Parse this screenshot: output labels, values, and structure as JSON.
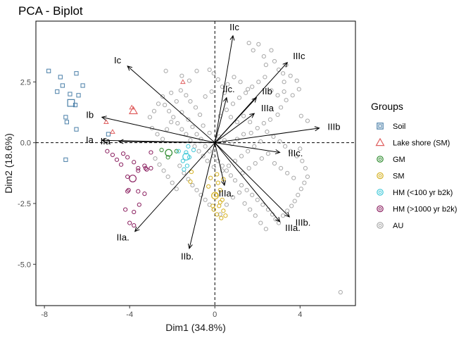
{
  "chart_data": {
    "type": "scatter",
    "title": "PCA - Biplot",
    "xlabel": "Dim1 (34.8%)",
    "ylabel": "Dim2 (18.6%)",
    "xlim": [
      -8.4,
      6.6
    ],
    "ylim": [
      -6.7,
      5.0
    ],
    "xticks": [
      -8,
      -4,
      0,
      4
    ],
    "yticks": [
      -5.0,
      -2.5,
      0.0,
      2.5
    ],
    "ytick_labels": [
      "-5.0",
      "-2.5",
      "0.0",
      "2.5"
    ],
    "grid": false,
    "reference_lines": [
      {
        "axis": "x",
        "value": 0,
        "style": "dashed"
      },
      {
        "axis": "y",
        "value": 0,
        "style": "dashed"
      }
    ],
    "legend": {
      "title": "Groups",
      "placement": "right",
      "entries": [
        {
          "label": "Soil",
          "shape": "square",
          "color": "#4a7fa8"
        },
        {
          "label": "Lake shore (SM)",
          "shape": "triangle",
          "color": "#e06060"
        },
        {
          "label": "GM",
          "shape": "circle",
          "color": "#2e8b2e"
        },
        {
          "label": "SM",
          "shape": "circle",
          "color": "#d4b020"
        },
        {
          "label": "HM (<100 yr b2k)",
          "shape": "circle",
          "color": "#40c8d8"
        },
        {
          "label": "HM (>1000 yr b2k)",
          "shape": "circle",
          "color": "#8b2060"
        },
        {
          "label": "AU",
          "shape": "circle",
          "color": "#a8a8a8"
        }
      ]
    },
    "variables": [
      {
        "name": "Ic",
        "x": -4.1,
        "y": 3.15
      },
      {
        "name": "Ib",
        "x": -5.3,
        "y": 1.05
      },
      {
        "name": "Ia",
        "x": -5.3,
        "y": 0.1
      },
      {
        "name": "IIc",
        "x": 0.85,
        "y": 4.4
      },
      {
        "name": "IIc.",
        "x": 0.55,
        "y": 1.85
      },
      {
        "name": "IIb",
        "x": 1.95,
        "y": 1.85
      },
      {
        "name": "IIa",
        "x": -4.5,
        "y": 0.05
      },
      {
        "name": "IIIc",
        "x": 3.4,
        "y": 3.3
      },
      {
        "name": "IIIb",
        "x": 4.9,
        "y": 0.6
      },
      {
        "name": "IIIa",
        "x": 1.85,
        "y": 1.2
      },
      {
        "name": "IIIc.",
        "x": 3.05,
        "y": -0.4
      },
      {
        "name": "IIa.",
        "x": -3.75,
        "y": -3.65
      },
      {
        "name": "IIb.",
        "x": -1.2,
        "y": -4.35
      },
      {
        "name": "IIIa.",
        "x": 0.45,
        "y": -1.75
      },
      {
        "name": "IIIa..",
        "x": 3.05,
        "y": -3.25
      },
      {
        "name": "IIIb.",
        "x": 3.5,
        "y": -3.05
      }
    ],
    "variable_label_text": {
      "Ic": "Ic",
      "Ib": "Ib",
      "Ia": "Ia",
      "IIc": "IIc",
      "IIc.": "IIc.",
      "IIb": "IIb",
      "IIa": "IIa",
      "IIIc": "IIIc",
      "IIIb": "IIIb",
      "IIIa": "IIIa",
      "IIIc.": "IIIc.",
      "IIa.": "IIa.",
      "IIb.": "IIb.",
      "IIIa.": "IIIa.",
      "IIIa..": "IIIa.",
      "IIIb.": "IIIb."
    },
    "series": [
      {
        "group": "Soil",
        "points": [
          [
            -7.8,
            2.95
          ],
          [
            -7.25,
            2.7
          ],
          [
            -7.15,
            2.35
          ],
          [
            -6.5,
            2.85
          ],
          [
            -6.8,
            2.0
          ],
          [
            -6.4,
            1.95
          ],
          [
            -6.2,
            2.35
          ],
          [
            -7.4,
            2.1
          ],
          [
            -7.0,
            1.05
          ],
          [
            -6.95,
            0.85
          ],
          [
            -6.5,
            0.55
          ],
          [
            -6.55,
            1.55
          ],
          [
            -7.0,
            -0.7
          ],
          [
            -5.0,
            0.35
          ]
        ]
      },
      {
        "group": "Lake shore (SM)",
        "points": [
          [
            -1.5,
            2.5
          ],
          [
            -4.8,
            0.45
          ],
          [
            -5.1,
            0.85
          ],
          [
            -3.9,
            1.45
          ]
        ]
      },
      {
        "group": "GM",
        "points": [
          [
            -2.5,
            -0.3
          ],
          [
            -2.2,
            -0.6
          ],
          [
            -1.8,
            -0.35
          ]
        ]
      },
      {
        "group": "SM",
        "points": [
          [
            0.1,
            -1.3
          ],
          [
            0.15,
            -1.65
          ],
          [
            0.25,
            -1.95
          ],
          [
            0.05,
            -2.15
          ],
          [
            0.35,
            -2.35
          ],
          [
            0.2,
            -2.6
          ],
          [
            0.4,
            -2.8
          ],
          [
            0.1,
            -2.95
          ],
          [
            0.3,
            -3.1
          ],
          [
            0.5,
            -3.0
          ],
          [
            -0.1,
            -2.6
          ],
          [
            -0.3,
            -1.8
          ],
          [
            -0.2,
            -1.45
          ],
          [
            0.4,
            -1.5
          ],
          [
            -1.1,
            -1.2
          ],
          [
            -1.15,
            -1.6
          ],
          [
            -0.05,
            -2.75
          ],
          [
            0.25,
            -2.45
          ]
        ]
      },
      {
        "group": "HM (<100 yr b2k)",
        "points": [
          [
            -1.45,
            -1.1
          ],
          [
            -1.3,
            -0.95
          ],
          [
            -1.2,
            -0.6
          ],
          [
            -1.0,
            -0.3
          ],
          [
            -1.35,
            -0.4
          ],
          [
            -1.7,
            -0.35
          ],
          [
            -1.5,
            -0.75
          ],
          [
            -1.25,
            -0.15
          ]
        ]
      },
      {
        "group": "HM (>1000 yr b2k)",
        "points": [
          [
            -5.05,
            -0.35
          ],
          [
            -4.8,
            -0.5
          ],
          [
            -4.6,
            -0.7
          ],
          [
            -4.4,
            -0.9
          ],
          [
            -4.1,
            -0.6
          ],
          [
            -3.8,
            -0.8
          ],
          [
            -3.6,
            -1.05
          ],
          [
            -3.2,
            -1.1
          ],
          [
            -3.3,
            -0.95
          ],
          [
            -4.3,
            -0.45
          ],
          [
            -3.0,
            -0.4
          ],
          [
            -4.1,
            -1.4
          ],
          [
            -3.0,
            -1.05
          ],
          [
            -4.1,
            -2.0
          ],
          [
            -3.55,
            -2.55
          ],
          [
            -3.6,
            -2.0
          ],
          [
            -4.2,
            -2.75
          ],
          [
            -3.8,
            -2.85
          ],
          [
            -4.0,
            -3.3
          ],
          [
            -3.8,
            -3.4
          ],
          [
            -4.05,
            -1.95
          ],
          [
            -3.3,
            -2.1
          ],
          [
            -3.25,
            -1.05
          ],
          [
            -3.6,
            -1.15
          ]
        ]
      },
      {
        "group": "AU",
        "points": [
          [
            -2.3,
            2.95
          ],
          [
            -1.55,
            2.75
          ],
          [
            -1.2,
            2.55
          ],
          [
            -0.85,
            2.95
          ],
          [
            -0.25,
            3.0
          ],
          [
            -0.05,
            2.85
          ],
          [
            0.15,
            2.6
          ],
          [
            0.35,
            2.3
          ],
          [
            0.6,
            2.4
          ],
          [
            0.9,
            2.7
          ],
          [
            1.2,
            2.5
          ],
          [
            1.55,
            2.2
          ],
          [
            1.6,
            4.1
          ],
          [
            1.8,
            3.8
          ],
          [
            2.05,
            4.05
          ],
          [
            2.3,
            3.55
          ],
          [
            2.4,
            3.2
          ],
          [
            2.65,
            3.8
          ],
          [
            2.8,
            3.35
          ],
          [
            3.0,
            3.0
          ],
          [
            3.2,
            2.85
          ],
          [
            3.35,
            3.2
          ],
          [
            3.25,
            2.5
          ],
          [
            3.55,
            2.75
          ],
          [
            3.85,
            2.55
          ],
          [
            3.95,
            2.2
          ],
          [
            3.65,
            1.95
          ],
          [
            3.35,
            1.75
          ],
          [
            3.1,
            1.45
          ],
          [
            2.95,
            1.15
          ],
          [
            2.6,
            0.95
          ],
          [
            2.3,
            0.8
          ],
          [
            2.0,
            0.6
          ],
          [
            1.7,
            0.4
          ],
          [
            1.35,
            0.35
          ],
          [
            1.05,
            0.15
          ],
          [
            0.8,
            -0.05
          ],
          [
            0.45,
            0.1
          ],
          [
            0.2,
            0.25
          ],
          [
            0.05,
            0.05
          ],
          [
            -0.25,
            0.4
          ],
          [
            -0.55,
            0.7
          ],
          [
            -0.7,
            1.15
          ],
          [
            -0.9,
            1.45
          ],
          [
            -1.15,
            1.7
          ],
          [
            -1.35,
            1.95
          ],
          [
            -1.6,
            2.15
          ],
          [
            -1.8,
            1.7
          ],
          [
            -1.55,
            1.25
          ],
          [
            -1.25,
            0.95
          ],
          [
            -1.05,
            0.65
          ],
          [
            -0.85,
            0.35
          ],
          [
            -0.65,
            0.15
          ],
          [
            -0.45,
            -0.15
          ],
          [
            -0.25,
            -0.35
          ],
          [
            -0.05,
            -0.55
          ],
          [
            0.15,
            -0.75
          ],
          [
            0.35,
            -0.95
          ],
          [
            0.55,
            -1.15
          ],
          [
            0.75,
            -1.35
          ],
          [
            0.95,
            -1.55
          ],
          [
            1.25,
            -1.75
          ],
          [
            1.5,
            -1.95
          ],
          [
            1.75,
            -2.15
          ],
          [
            2.0,
            -2.35
          ],
          [
            2.25,
            -2.55
          ],
          [
            2.5,
            -2.75
          ],
          [
            2.7,
            -2.95
          ],
          [
            2.85,
            -3.15
          ],
          [
            3.0,
            -3.3
          ],
          [
            3.2,
            -3.0
          ],
          [
            3.4,
            -2.8
          ],
          [
            3.6,
            -2.6
          ],
          [
            3.75,
            -2.4
          ],
          [
            3.9,
            -2.15
          ],
          [
            4.05,
            -1.9
          ],
          [
            4.2,
            -1.65
          ],
          [
            4.35,
            -1.4
          ],
          [
            4.1,
            -0.75
          ],
          [
            3.85,
            -0.55
          ],
          [
            3.55,
            -0.35
          ],
          [
            3.3,
            -0.15
          ],
          [
            3.05,
            0.05
          ],
          [
            2.75,
            0.25
          ],
          [
            2.45,
            0.45
          ],
          [
            2.15,
            0.05
          ],
          [
            1.85,
            -0.15
          ],
          [
            1.55,
            -0.35
          ],
          [
            1.25,
            -0.55
          ],
          [
            0.95,
            -0.75
          ],
          [
            0.65,
            -0.95
          ],
          [
            0.35,
            -1.15
          ],
          [
            -0.05,
            -1.0
          ],
          [
            -0.35,
            -0.75
          ],
          [
            -0.55,
            -0.55
          ],
          [
            -0.75,
            -0.35
          ],
          [
            -0.95,
            -0.15
          ],
          [
            -1.15,
            0.1
          ],
          [
            -1.35,
            0.35
          ],
          [
            -1.55,
            0.55
          ],
          [
            -1.75,
            0.8
          ],
          [
            -1.95,
            1.05
          ],
          [
            -2.15,
            1.3
          ],
          [
            -2.35,
            1.55
          ],
          [
            -2.05,
            2.05
          ],
          [
            -2.45,
            1.9
          ],
          [
            -2.65,
            1.6
          ],
          [
            -2.85,
            1.3
          ],
          [
            -3.05,
            1.05
          ],
          [
            -2.95,
            0.6
          ],
          [
            -2.7,
            0.35
          ],
          [
            -2.45,
            0.15
          ],
          [
            -2.25,
            0.55
          ],
          [
            -2.05,
            0.85
          ],
          [
            -1.65,
            -0.95
          ],
          [
            -1.45,
            -1.25
          ],
          [
            -1.25,
            -1.5
          ],
          [
            -1.05,
            -1.75
          ],
          [
            -0.85,
            -1.95
          ],
          [
            -0.65,
            -2.15
          ],
          [
            -0.45,
            -2.35
          ],
          [
            -0.25,
            -2.55
          ],
          [
            -0.05,
            -2.75
          ],
          [
            0.25,
            -2.95
          ],
          [
            0.55,
            -2.55
          ],
          [
            0.85,
            -2.25
          ],
          [
            1.15,
            -2.05
          ],
          [
            1.4,
            -2.5
          ],
          [
            1.65,
            -2.75
          ],
          [
            1.9,
            -3.0
          ],
          [
            2.15,
            -3.3
          ],
          [
            2.4,
            -3.55
          ],
          [
            1.3,
            -1.25
          ],
          [
            1.6,
            -1.05
          ],
          [
            1.9,
            -0.85
          ],
          [
            2.2,
            -0.65
          ],
          [
            2.5,
            -0.45
          ],
          [
            2.8,
            -0.85
          ],
          [
            3.1,
            -1.05
          ],
          [
            3.4,
            -1.25
          ],
          [
            3.7,
            -1.45
          ],
          [
            0.25,
            1.1
          ],
          [
            0.55,
            1.35
          ],
          [
            0.85,
            1.6
          ],
          [
            1.15,
            1.85
          ],
          [
            1.45,
            2.05
          ],
          [
            1.75,
            2.3
          ],
          [
            2.05,
            2.5
          ],
          [
            2.35,
            2.7
          ],
          [
            2.65,
            2.15
          ],
          [
            2.95,
            1.95
          ],
          [
            3.25,
            2.1
          ],
          [
            4.25,
            -1.05
          ],
          [
            4.05,
            1.1
          ],
          [
            4.35,
            0.9
          ],
          [
            4.0,
            -0.25
          ],
          [
            -0.45,
            1.9
          ],
          [
            -0.15,
            2.1
          ],
          [
            0.45,
            2.05
          ],
          [
            0.75,
            1.05
          ],
          [
            1.05,
            0.85
          ],
          [
            1.35,
            1.1
          ],
          [
            1.65,
            0.85
          ],
          [
            -2.8,
            -0.65
          ],
          [
            -2.6,
            -0.9
          ],
          [
            -2.4,
            -1.15
          ],
          [
            -2.2,
            -1.4
          ],
          [
            -2.0,
            -1.65
          ],
          [
            -1.8,
            -1.9
          ],
          [
            5.9,
            -6.15
          ]
        ]
      }
    ]
  }
}
